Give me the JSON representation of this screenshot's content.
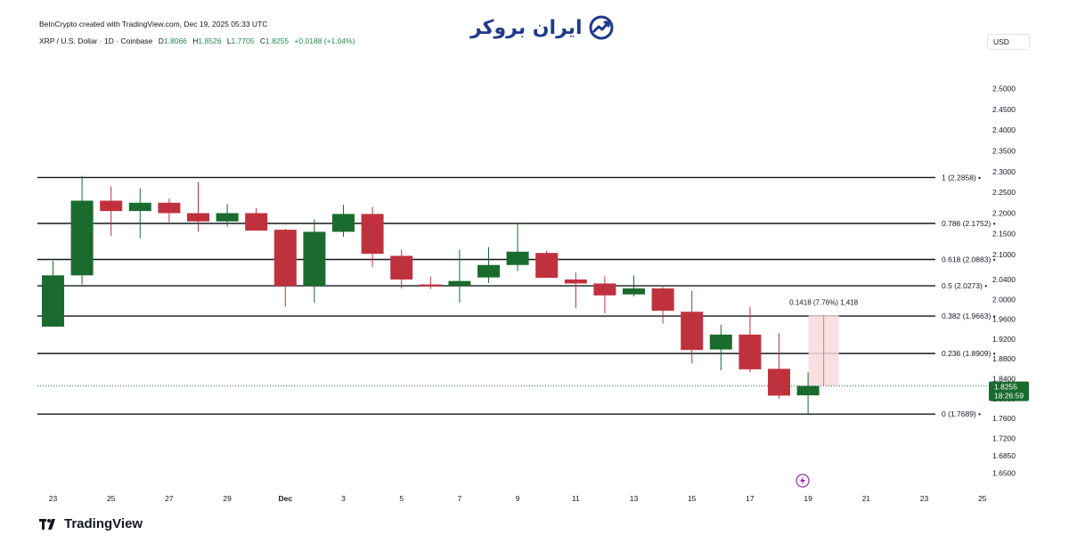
{
  "header": {
    "credit": "BeInCrypto created with TradingView.com, Dec 19, 2025 05:33 UTC",
    "brand_text": "ایران بروکر",
    "symbol": "XRP / U.S. Dollar · 1D · Coinbase",
    "o_label": "D",
    "o_value": "1.8066",
    "h_label": "H",
    "h_value": "1.8526",
    "l_label": "L",
    "l_value": "1.7705",
    "c_label": "C",
    "c_value": "1.8255",
    "change": "+0.0188 (+1.04%)",
    "currency": "USD"
  },
  "footer": {
    "brand": "TradingView"
  },
  "colors": {
    "up": "#1a6b2e",
    "down": "#c0313e",
    "range_fill": "#fadadd",
    "grid_line": "#131722"
  },
  "chart_data": {
    "type": "candlestick",
    "y_ticks": [
      "2.5000",
      "2.4500",
      "2.4000",
      "2.3500",
      "2.3000",
      "2.2500",
      "2.2000",
      "2.1500",
      "2.1000",
      "2.0400",
      "2.0000",
      "1.9600",
      "1.9200",
      "1.8800",
      "1.8400",
      "1.8000",
      "1.7600",
      "1.7200",
      "1.6850",
      "1.6500"
    ],
    "x_ticks": [
      {
        "label": "23",
        "day": 23
      },
      {
        "label": "25",
        "day": 25
      },
      {
        "label": "27",
        "day": 27
      },
      {
        "label": "29",
        "day": 29
      },
      {
        "label": "Dec",
        "day": 31
      },
      {
        "label": "3",
        "day": 33
      },
      {
        "label": "5",
        "day": 35
      },
      {
        "label": "7",
        "day": 37
      },
      {
        "label": "9",
        "day": 39
      },
      {
        "label": "11",
        "day": 41
      },
      {
        "label": "13",
        "day": 43
      },
      {
        "label": "15",
        "day": 45
      },
      {
        "label": "17",
        "day": 47
      },
      {
        "label": "19",
        "day": 49
      },
      {
        "label": "21",
        "day": 51
      },
      {
        "label": "23",
        "day": 53
      },
      {
        "label": "25",
        "day": 55
      }
    ],
    "candles": [
      {
        "day": 23,
        "o": 1.945,
        "h": 2.085,
        "l": 1.945,
        "c": 2.05
      },
      {
        "day": 24,
        "o": 2.05,
        "h": 2.29,
        "l": 2.03,
        "c": 2.23
      },
      {
        "day": 25,
        "o": 2.23,
        "h": 2.265,
        "l": 2.145,
        "c": 2.205
      },
      {
        "day": 26,
        "o": 2.205,
        "h": 2.26,
        "l": 2.14,
        "c": 2.225
      },
      {
        "day": 27,
        "o": 2.225,
        "h": 2.235,
        "l": 2.178,
        "c": 2.2
      },
      {
        "day": 28,
        "o": 2.2,
        "h": 2.275,
        "l": 2.155,
        "c": 2.18
      },
      {
        "day": 29,
        "o": 2.18,
        "h": 2.222,
        "l": 2.167,
        "c": 2.2
      },
      {
        "day": 30,
        "o": 2.2,
        "h": 2.212,
        "l": 2.158,
        "c": 2.158
      },
      {
        "day": 31,
        "o": 2.16,
        "h": 2.162,
        "l": 1.985,
        "c": 2.027
      },
      {
        "day": 32,
        "o": 2.027,
        "h": 2.185,
        "l": 1.993,
        "c": 2.155
      },
      {
        "day": 33,
        "o": 2.155,
        "h": 2.22,
        "l": 2.143,
        "c": 2.198
      },
      {
        "day": 34,
        "o": 2.198,
        "h": 2.215,
        "l": 2.07,
        "c": 2.102
      },
      {
        "day": 35,
        "o": 2.097,
        "h": 2.112,
        "l": 2.022,
        "c": 2.04
      },
      {
        "day": 36,
        "o": 2.03,
        "h": 2.047,
        "l": 2.021,
        "c": 2.026
      },
      {
        "day": 37,
        "o": 2.027,
        "h": 2.112,
        "l": 1.993,
        "c": 2.037
      },
      {
        "day": 38,
        "o": 2.045,
        "h": 2.118,
        "l": 2.033,
        "c": 2.075
      },
      {
        "day": 39,
        "o": 2.075,
        "h": 2.177,
        "l": 2.06,
        "c": 2.107
      },
      {
        "day": 40,
        "o": 2.104,
        "h": 2.11,
        "l": 2.044,
        "c": 2.044
      },
      {
        "day": 41,
        "o": 2.04,
        "h": 2.057,
        "l": 1.982,
        "c": 2.032
      },
      {
        "day": 42,
        "o": 2.032,
        "h": 2.048,
        "l": 1.972,
        "c": 2.008
      },
      {
        "day": 43,
        "o": 2.01,
        "h": 2.05,
        "l": 2.006,
        "c": 2.022
      },
      {
        "day": 44,
        "o": 2.022,
        "h": 2.025,
        "l": 1.951,
        "c": 1.977
      },
      {
        "day": 45,
        "o": 1.975,
        "h": 2.017,
        "l": 1.871,
        "c": 1.898
      },
      {
        "day": 46,
        "o": 1.899,
        "h": 1.949,
        "l": 1.857,
        "c": 1.929
      },
      {
        "day": 47,
        "o": 1.929,
        "h": 1.985,
        "l": 1.853,
        "c": 1.859
      },
      {
        "day": 48,
        "o": 1.86,
        "h": 1.932,
        "l": 1.8,
        "c": 1.806
      },
      {
        "day": 49,
        "o": 1.8066,
        "h": 1.8526,
        "l": 1.7705,
        "c": 1.8255
      }
    ],
    "fib_levels": [
      {
        "label": "1 (2.2858)",
        "value": 2.2858
      },
      {
        "label": "0.786 (2.1752)",
        "value": 2.1752
      },
      {
        "label": "0.618 (2.0883)",
        "value": 2.0883
      },
      {
        "label": "0.5 (2.0273)",
        "value": 2.0273
      },
      {
        "label": "0.382 (1.9663)",
        "value": 1.9663
      },
      {
        "label": "0.236 (1.8909)",
        "value": 1.8909
      },
      {
        "label": "0 (1.7689)",
        "value": 1.7689
      }
    ],
    "measure": {
      "label": "0.1418 (7.76%) 1,418",
      "start_day": 49,
      "end_day": 50,
      "from": 1.8255,
      "to": 1.9673
    },
    "last_price": {
      "value": 1.8255,
      "label": "1.8255",
      "countdown": "18:26:59"
    }
  }
}
